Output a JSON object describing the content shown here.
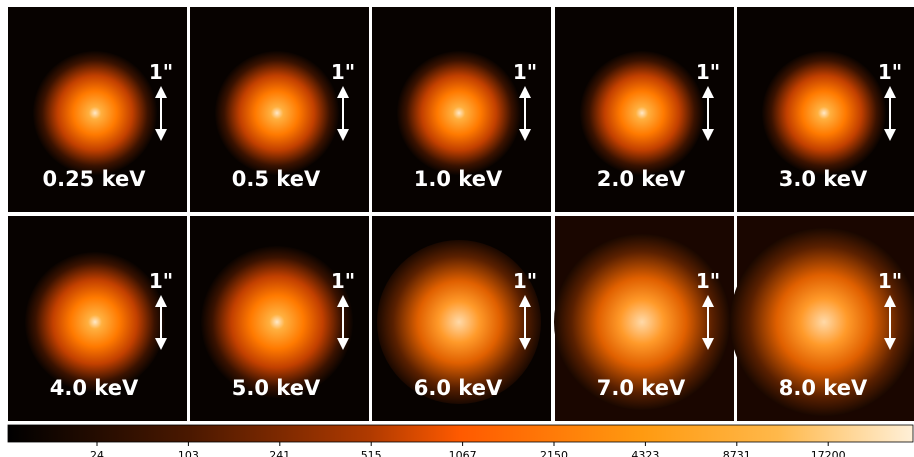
{
  "panels": [
    {
      "label": "0.25 keV",
      "scale_label": "1\""
    },
    {
      "label": "0.5 keV",
      "scale_label": "1\""
    },
    {
      "label": "1.0 keV",
      "scale_label": "1\""
    },
    {
      "label": "2.0 keV",
      "scale_label": "1\""
    },
    {
      "label": "3.0 keV",
      "scale_label": "1\""
    },
    {
      "label": "4.0 keV",
      "scale_label": "1\""
    },
    {
      "label": "5.0 keV",
      "scale_label": "1\""
    },
    {
      "label": "6.0 keV",
      "scale_label": "1\""
    },
    {
      "label": "7.0 keV",
      "scale_label": "1\""
    },
    {
      "label": "8.0 keV",
      "scale_label": "1\""
    }
  ],
  "colorbar": {
    "ticks": [
      "24",
      "103",
      "241",
      "515",
      "1067",
      "2150",
      "4323",
      "8731",
      "17200"
    ]
  }
}
